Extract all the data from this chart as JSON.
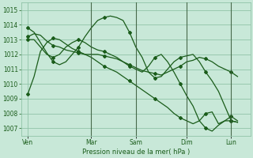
{
  "title": "",
  "xlabel": "Pression niveau de la mer( hPa )",
  "ylabel": "",
  "ylim": [
    1006.5,
    1015.5
  ],
  "yticks": [
    1007,
    1008,
    1009,
    1010,
    1011,
    1012,
    1013,
    1014,
    1015
  ],
  "bg_color": "#c8e8d8",
  "grid_color": "#90c4a8",
  "line_color": "#1a5c1a",
  "vline_color": "#3a5a3a",
  "x_day_labels": [
    "Ven",
    "Mar",
    "Sam",
    "Dim",
    "Lun"
  ],
  "x_day_positions": [
    0,
    40,
    68,
    100,
    128
  ],
  "vline_positions": [
    40,
    68,
    100,
    128
  ],
  "xlim": [
    -4,
    140
  ],
  "lines": [
    {
      "x": [
        0,
        4,
        8,
        12,
        16,
        20,
        24,
        28,
        32,
        36,
        40,
        44,
        48,
        52,
        56,
        60,
        64,
        68,
        72,
        76,
        80,
        84,
        88,
        92,
        96,
        100,
        104,
        108,
        112,
        116,
        120,
        124,
        128,
        132
      ],
      "y": [
        1009.3,
        1010.5,
        1012.2,
        1012.8,
        1013.1,
        1013.0,
        1012.7,
        1012.4,
        1012.2,
        1012.0,
        1011.8,
        1011.5,
        1011.2,
        1011.0,
        1010.8,
        1010.5,
        1010.2,
        1009.9,
        1009.6,
        1009.3,
        1009.0,
        1008.7,
        1008.4,
        1008.0,
        1007.7,
        1007.5,
        1007.3,
        1007.5,
        1008.0,
        1008.1,
        1007.3,
        1007.5,
        1007.5,
        1007.4
      ]
    },
    {
      "x": [
        0,
        4,
        8,
        12,
        16,
        20,
        24,
        28,
        32,
        36,
        40,
        44,
        48,
        52,
        56,
        60,
        64,
        68,
        72,
        76,
        80,
        84,
        88,
        92,
        96,
        100,
        104,
        108,
        112,
        116,
        120,
        124,
        128,
        132
      ],
      "y": [
        1013.2,
        1013.4,
        1013.3,
        1012.9,
        1012.6,
        1012.5,
        1012.3,
        1012.2,
        1012.1,
        1012.0,
        1012.0,
        1012.0,
        1011.9,
        1011.8,
        1011.7,
        1011.5,
        1011.3,
        1011.1,
        1010.9,
        1010.8,
        1010.7,
        1010.6,
        1010.8,
        1011.0,
        1011.2,
        1011.5,
        1011.6,
        1011.8,
        1011.7,
        1011.5,
        1011.2,
        1011.0,
        1010.8,
        1010.5
      ]
    },
    {
      "x": [
        0,
        4,
        8,
        12,
        16,
        20,
        24,
        28,
        32,
        36,
        40,
        44,
        48,
        52,
        56,
        60,
        64,
        68,
        72,
        76,
        80,
        84,
        88,
        92,
        96,
        100,
        104,
        108,
        112,
        116,
        120,
        124,
        128,
        132
      ],
      "y": [
        1013.8,
        1013.5,
        1012.8,
        1012.1,
        1011.5,
        1011.3,
        1011.5,
        1012.0,
        1012.5,
        1013.2,
        1013.8,
        1014.3,
        1014.5,
        1014.6,
        1014.5,
        1014.3,
        1013.5,
        1012.5,
        1011.8,
        1010.8,
        1010.4,
        1010.5,
        1011.0,
        1011.5,
        1011.8,
        1011.9,
        1012.0,
        1011.5,
        1010.8,
        1010.2,
        1009.5,
        1008.5,
        1007.5,
        1007.4
      ]
    },
    {
      "x": [
        0,
        4,
        8,
        12,
        16,
        20,
        24,
        28,
        32,
        36,
        40,
        44,
        48,
        52,
        56,
        60,
        64,
        68,
        72,
        76,
        80,
        84,
        88,
        92,
        96,
        100,
        104,
        108,
        112,
        116,
        120,
        124,
        128,
        132
      ],
      "y": [
        1013.0,
        1013.0,
        1012.5,
        1012.0,
        1011.8,
        1012.0,
        1012.5,
        1012.8,
        1013.0,
        1012.8,
        1012.5,
        1012.3,
        1012.2,
        1012.0,
        1011.8,
        1011.5,
        1011.2,
        1011.0,
        1010.8,
        1011.2,
        1011.8,
        1012.0,
        1011.5,
        1010.8,
        1010.0,
        1009.2,
        1008.5,
        1007.5,
        1007.0,
        1006.8,
        1007.2,
        1007.5,
        1007.8,
        1007.5
      ]
    }
  ],
  "marker_style": "D",
  "marker_size": 2.0,
  "linewidth": 0.9,
  "marker_every": 4
}
